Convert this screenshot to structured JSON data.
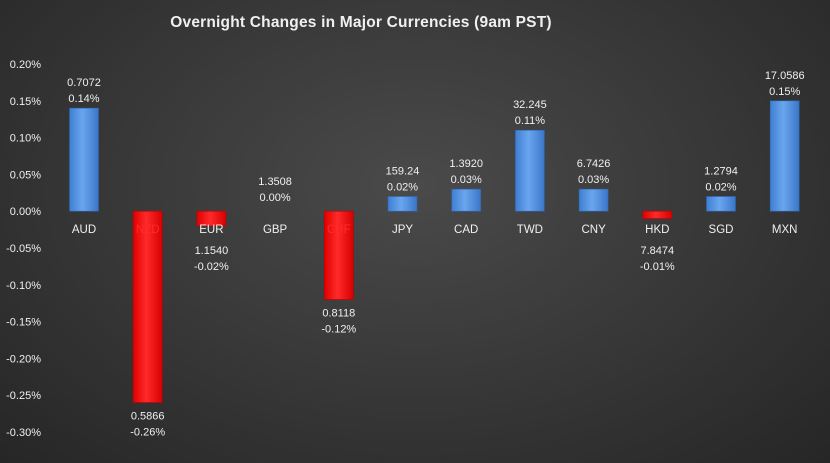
{
  "chart_data": {
    "type": "bar",
    "title": "Overnight Changes in Major Currencies (9am PST)",
    "categories": [
      "AUD",
      "NZD",
      "EUR",
      "GBP",
      "CHF",
      "JPY",
      "CAD",
      "TWD",
      "CNY",
      "HKD",
      "SGD",
      "MXN"
    ],
    "values": [
      0.14,
      -0.26,
      -0.02,
      0.0,
      -0.12,
      0.02,
      0.03,
      0.11,
      0.03,
      -0.01,
      0.02,
      0.15
    ],
    "value_labels": [
      "0.14%",
      "-0.26%",
      "-0.02%",
      "0.00%",
      "-0.12%",
      "0.02%",
      "0.03%",
      "0.11%",
      "0.03%",
      "-0.01%",
      "0.02%",
      "0.15%"
    ],
    "rates": [
      "0.7072",
      "0.5866",
      "1.1540",
      "1.3508",
      "0.8118",
      "159.24",
      "1.3920",
      "32.245",
      "6.7426",
      "7.8474",
      "1.2794",
      "17.0586"
    ],
    "highlight_categories": [
      "NZD",
      "CHF"
    ],
    "ylim": [
      -0.3,
      0.2
    ],
    "yticks": [
      0.2,
      0.15,
      0.1,
      0.05,
      0.0,
      -0.05,
      -0.1,
      -0.15,
      -0.2,
      -0.25,
      -0.3
    ],
    "ytick_labels": [
      "0.20%",
      "0.15%",
      "0.10%",
      "0.05%",
      "0.00%",
      "-0.05%",
      "-0.10%",
      "-0.15%",
      "-0.20%",
      "-0.25%",
      "-0.30%"
    ],
    "xlabel": "",
    "ylabel": "",
    "grid": false,
    "legend": "none",
    "colors": {
      "positive": "#4f8fe0",
      "negative": "#ff1a1a",
      "highlight_label": "#ff2a2a",
      "text": "#f0f0f0"
    }
  }
}
